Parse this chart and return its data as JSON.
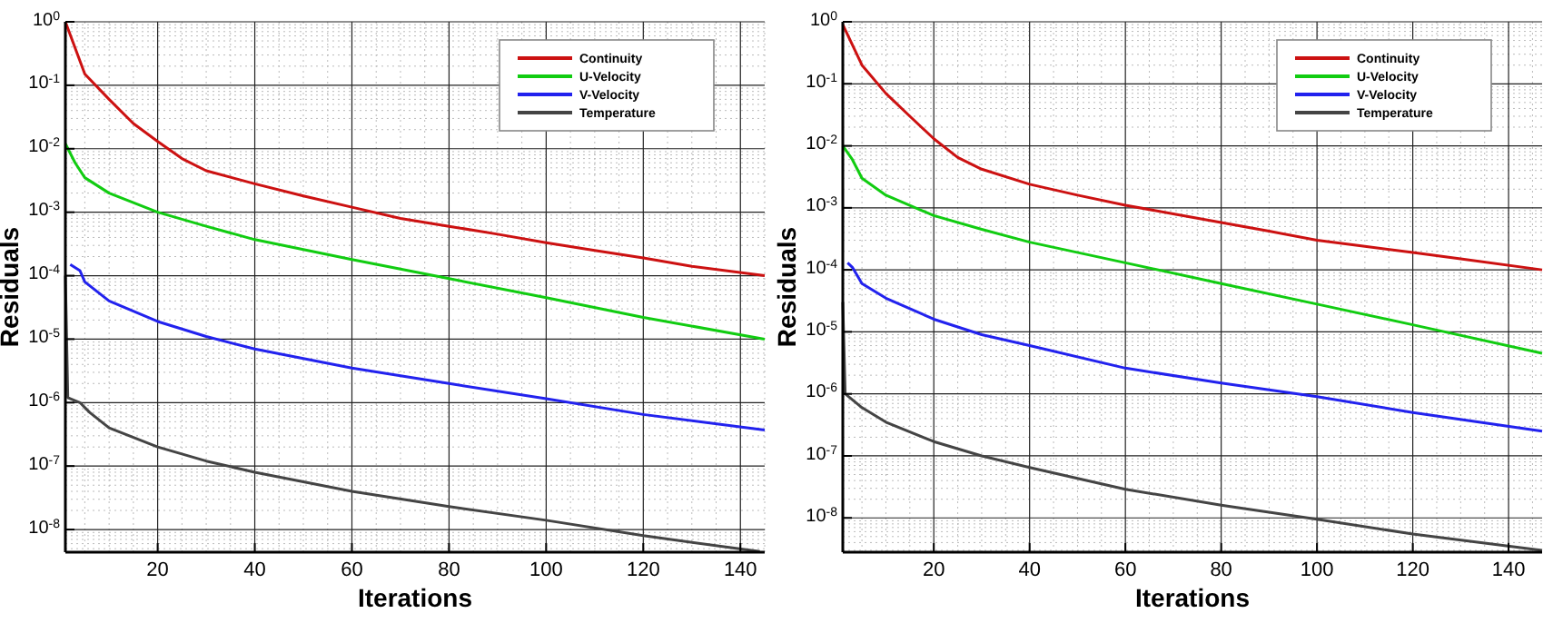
{
  "chart_data": [
    {
      "type": "line",
      "xlabel": "Iterations",
      "ylabel": "Residuals",
      "log": "y",
      "grid": true,
      "legend": "top right",
      "line_style": "solid",
      "marker": "none",
      "xlim": [
        1,
        145
      ],
      "xticks": [
        20,
        40,
        60,
        80,
        100,
        120,
        140
      ],
      "ylim": [
        4.4e-09,
        1
      ],
      "yticks": [
        {
          "value": 1,
          "label": "10$^{0}$"
        },
        {
          "value": 0.1,
          "label": "10$^{-1}$"
        },
        {
          "value": 0.01,
          "label": "10$^{-2}$"
        },
        {
          "value": 0.001,
          "label": "10$^{-3}$"
        },
        {
          "value": 0.0001,
          "label": "10$^{-4}$"
        },
        {
          "value": 1e-05,
          "label": "10$^{-5}$"
        },
        {
          "value": 1e-06,
          "label": "10$^{-6}$"
        },
        {
          "value": 1e-07,
          "label": "10$^{-7}$"
        },
        {
          "value": 1e-08,
          "label": "10$^{-8}$"
        }
      ],
      "series": [
        {
          "name": "Continuity",
          "color": "#cc1111",
          "x": [
            1,
            5,
            10,
            15,
            20,
            25,
            30,
            40,
            50,
            60,
            70,
            80,
            90,
            100,
            110,
            120,
            130,
            145
          ],
          "values": [
            1,
            0.15,
            0.06,
            0.025,
            0.013,
            0.007,
            0.0045,
            0.0028,
            0.0018,
            0.0012,
            0.0008,
            0.0006,
            0.00045,
            0.00033,
            0.00025,
            0.00019,
            0.00014,
            0.0001
          ]
        },
        {
          "name": "U-Velocity",
          "color": "#11cc11",
          "x": [
            1,
            3,
            5,
            10,
            20,
            30,
            40,
            60,
            80,
            100,
            120,
            145
          ],
          "values": [
            0.012,
            0.006,
            0.0035,
            0.002,
            0.001,
            0.0006,
            0.00037,
            0.00018,
            9e-05,
            4.5e-05,
            2.2e-05,
            1e-05
          ]
        },
        {
          "name": "V-Velocity",
          "color": "#2222ee",
          "x": [
            2,
            4,
            5,
            10,
            20,
            30,
            40,
            60,
            80,
            100,
            120,
            145
          ],
          "values": [
            0.00015,
            0.00012,
            8e-05,
            4e-05,
            1.9e-05,
            1.1e-05,
            7e-06,
            3.5e-06,
            2e-06,
            1.15e-06,
            6.5e-07,
            3.7e-07
          ]
        },
        {
          "name": "Temperature",
          "color": "#444444",
          "x": [
            1,
            1.5,
            4,
            6,
            10,
            20,
            30,
            40,
            60,
            80,
            100,
            120,
            144
          ],
          "values": [
            0.0001,
            1.2e-06,
            1e-06,
            7e-07,
            4e-07,
            2e-07,
            1.2e-07,
            8e-08,
            4e-08,
            2.3e-08,
            1.4e-08,
            8e-09,
            4.5e-09
          ]
        }
      ]
    },
    {
      "type": "line",
      "xlabel": "Iterations",
      "ylabel": "Residuals",
      "log": "y",
      "grid": true,
      "legend": "top right",
      "line_style": "solid",
      "marker": "none",
      "xlim": [
        1,
        147
      ],
      "xticks": [
        20,
        40,
        60,
        80,
        100,
        120,
        140
      ],
      "ylim": [
        2.8e-09,
        1
      ],
      "yticks": [
        {
          "value": 1,
          "label": "10$^{0}$"
        },
        {
          "value": 0.1,
          "label": "10$^{-1}$"
        },
        {
          "value": 0.01,
          "label": "10$^{-2}$"
        },
        {
          "value": 0.001,
          "label": "10$^{-3}$"
        },
        {
          "value": 0.0001,
          "label": "10$^{-4}$"
        },
        {
          "value": 1e-05,
          "label": "10$^{-5}$"
        },
        {
          "value": 1e-06,
          "label": "10$^{-6}$"
        },
        {
          "value": 1e-07,
          "label": "10$^{-7}$"
        },
        {
          "value": 1e-08,
          "label": "10$^{-8}$"
        }
      ],
      "series": [
        {
          "name": "Continuity",
          "color": "#cc1111",
          "x": [
            1,
            5,
            10,
            15,
            20,
            25,
            30,
            40,
            50,
            60,
            70,
            80,
            90,
            100,
            110,
            120,
            130,
            147
          ],
          "values": [
            0.9,
            0.2,
            0.07,
            0.03,
            0.013,
            0.0065,
            0.0042,
            0.0024,
            0.0016,
            0.0011,
            0.0008,
            0.00058,
            0.00042,
            0.0003,
            0.00024,
            0.00019,
            0.00015,
            0.0001
          ]
        },
        {
          "name": "U-Velocity",
          "color": "#11cc11",
          "x": [
            1,
            3,
            5,
            10,
            20,
            30,
            40,
            60,
            80,
            100,
            120,
            147
          ],
          "values": [
            0.01,
            0.006,
            0.003,
            0.0016,
            0.00075,
            0.00045,
            0.00028,
            0.00013,
            6e-05,
            2.8e-05,
            1.3e-05,
            4.5e-06
          ]
        },
        {
          "name": "V-Velocity",
          "color": "#2222ee",
          "x": [
            2,
            3,
            5,
            10,
            20,
            30,
            40,
            60,
            80,
            100,
            120,
            147
          ],
          "values": [
            0.00013,
            0.00011,
            6e-05,
            3.5e-05,
            1.6e-05,
            9e-06,
            6e-06,
            2.6e-06,
            1.5e-06,
            9e-07,
            5e-07,
            2.5e-07
          ]
        },
        {
          "name": "Temperature",
          "color": "#444444",
          "x": [
            1,
            1.5,
            5,
            10,
            20,
            30,
            40,
            60,
            80,
            100,
            120,
            147
          ],
          "values": [
            3e-05,
            1e-06,
            6e-07,
            3.5e-07,
            1.7e-07,
            1e-07,
            6.5e-08,
            2.9e-08,
            1.6e-08,
            9.5e-09,
            5.5e-09,
            3e-09
          ]
        }
      ]
    }
  ]
}
